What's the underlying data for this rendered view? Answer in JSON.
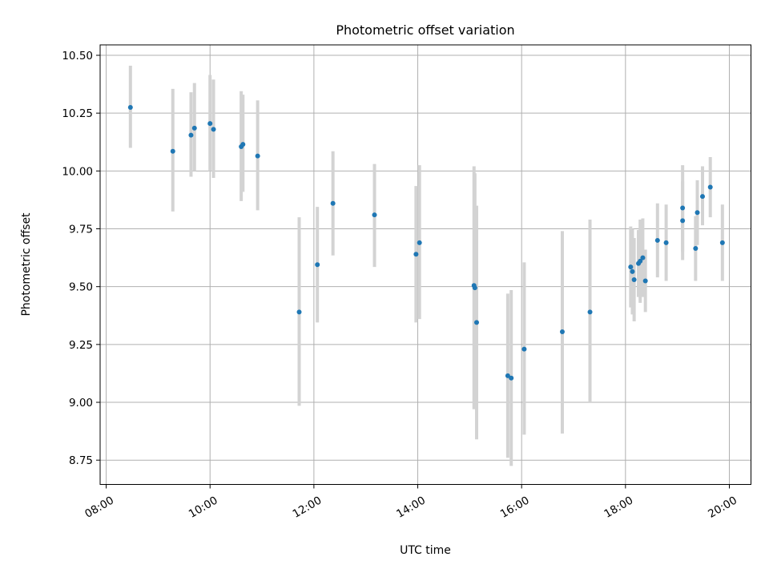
{
  "chart_data": {
    "type": "scatter",
    "title": "Photometric offset variation",
    "xlabel": "UTC time",
    "ylabel": "Photometric offset",
    "xlim": [
      "07:53",
      "20:25"
    ],
    "ylim": [
      8.645,
      10.545
    ],
    "grid": true,
    "x_ticks": [
      "08:00",
      "10:00",
      "12:00",
      "14:00",
      "16:00",
      "18:00",
      "20:00"
    ],
    "y_ticks": [
      "8.75",
      "9.00",
      "9.25",
      "9.50",
      "9.75",
      "10.00",
      "10.25",
      "10.50"
    ],
    "colors": {
      "marker": "#1f77b4",
      "errorbar": "#d3d3d3",
      "grid": "#b0b0b0"
    },
    "points": [
      {
        "x": "08:28",
        "y": 10.275,
        "lo": 10.1,
        "hi": 10.455
      },
      {
        "x": "09:17",
        "y": 10.085,
        "lo": 9.825,
        "hi": 10.355
      },
      {
        "x": "09:38",
        "y": 10.155,
        "lo": 9.975,
        "hi": 10.34
      },
      {
        "x": "09:42",
        "y": 10.185,
        "lo": 10.0,
        "hi": 10.38
      },
      {
        "x": "10:00",
        "y": 10.205,
        "lo": 10.0,
        "hi": 10.415
      },
      {
        "x": "10:04",
        "y": 10.18,
        "lo": 9.97,
        "hi": 10.395
      },
      {
        "x": "10:36",
        "y": 10.105,
        "lo": 9.87,
        "hi": 10.345
      },
      {
        "x": "10:38",
        "y": 10.115,
        "lo": 9.91,
        "hi": 10.33
      },
      {
        "x": "10:55",
        "y": 10.065,
        "lo": 9.83,
        "hi": 10.305
      },
      {
        "x": "11:43",
        "y": 9.39,
        "lo": 8.985,
        "hi": 9.8
      },
      {
        "x": "12:04",
        "y": 9.595,
        "lo": 9.345,
        "hi": 9.845
      },
      {
        "x": "12:22",
        "y": 9.86,
        "lo": 9.635,
        "hi": 10.085
      },
      {
        "x": "13:10",
        "y": 9.81,
        "lo": 9.585,
        "hi": 10.03
      },
      {
        "x": "13:58",
        "y": 9.64,
        "lo": 9.345,
        "hi": 9.935
      },
      {
        "x": "14:02",
        "y": 9.69,
        "lo": 9.36,
        "hi": 10.025
      },
      {
        "x": "15:05",
        "y": 9.505,
        "lo": 8.97,
        "hi": 10.02
      },
      {
        "x": "15:06",
        "y": 9.495,
        "lo": 9.0,
        "hi": 9.99
      },
      {
        "x": "15:08",
        "y": 9.345,
        "lo": 8.84,
        "hi": 9.85
      },
      {
        "x": "15:44",
        "y": 9.115,
        "lo": 8.76,
        "hi": 9.47
      },
      {
        "x": "15:48",
        "y": 9.105,
        "lo": 8.725,
        "hi": 9.485
      },
      {
        "x": "16:03",
        "y": 9.23,
        "lo": 8.86,
        "hi": 9.605
      },
      {
        "x": "16:47",
        "y": 9.305,
        "lo": 8.865,
        "hi": 9.74
      },
      {
        "x": "17:19",
        "y": 9.39,
        "lo": 9.0,
        "hi": 9.79
      },
      {
        "x": "18:06",
        "y": 9.585,
        "lo": 9.41,
        "hi": 9.76
      },
      {
        "x": "18:08",
        "y": 9.565,
        "lo": 9.38,
        "hi": 9.75
      },
      {
        "x": "18:10",
        "y": 9.53,
        "lo": 9.35,
        "hi": 9.71
      },
      {
        "x": "18:15",
        "y": 9.6,
        "lo": 9.455,
        "hi": 9.745
      },
      {
        "x": "18:17",
        "y": 9.61,
        "lo": 9.43,
        "hi": 9.79
      },
      {
        "x": "18:20",
        "y": 9.625,
        "lo": 9.455,
        "hi": 9.795
      },
      {
        "x": "18:23",
        "y": 9.525,
        "lo": 9.39,
        "hi": 9.66
      },
      {
        "x": "18:37",
        "y": 9.7,
        "lo": 9.54,
        "hi": 9.86
      },
      {
        "x": "18:47",
        "y": 9.69,
        "lo": 9.525,
        "hi": 9.855
      },
      {
        "x": "19:06",
        "y": 9.84,
        "lo": 9.65,
        "hi": 10.025
      },
      {
        "x": "19:06",
        "y": 9.785,
        "lo": 9.615,
        "hi": 9.955
      },
      {
        "x": "19:21",
        "y": 9.665,
        "lo": 9.525,
        "hi": 9.805
      },
      {
        "x": "19:23",
        "y": 9.82,
        "lo": 9.68,
        "hi": 9.96
      },
      {
        "x": "19:29",
        "y": 9.89,
        "lo": 9.765,
        "hi": 10.02
      },
      {
        "x": "19:38",
        "y": 9.93,
        "lo": 9.8,
        "hi": 10.06
      },
      {
        "x": "19:52",
        "y": 9.69,
        "lo": 9.525,
        "hi": 9.855
      }
    ]
  }
}
